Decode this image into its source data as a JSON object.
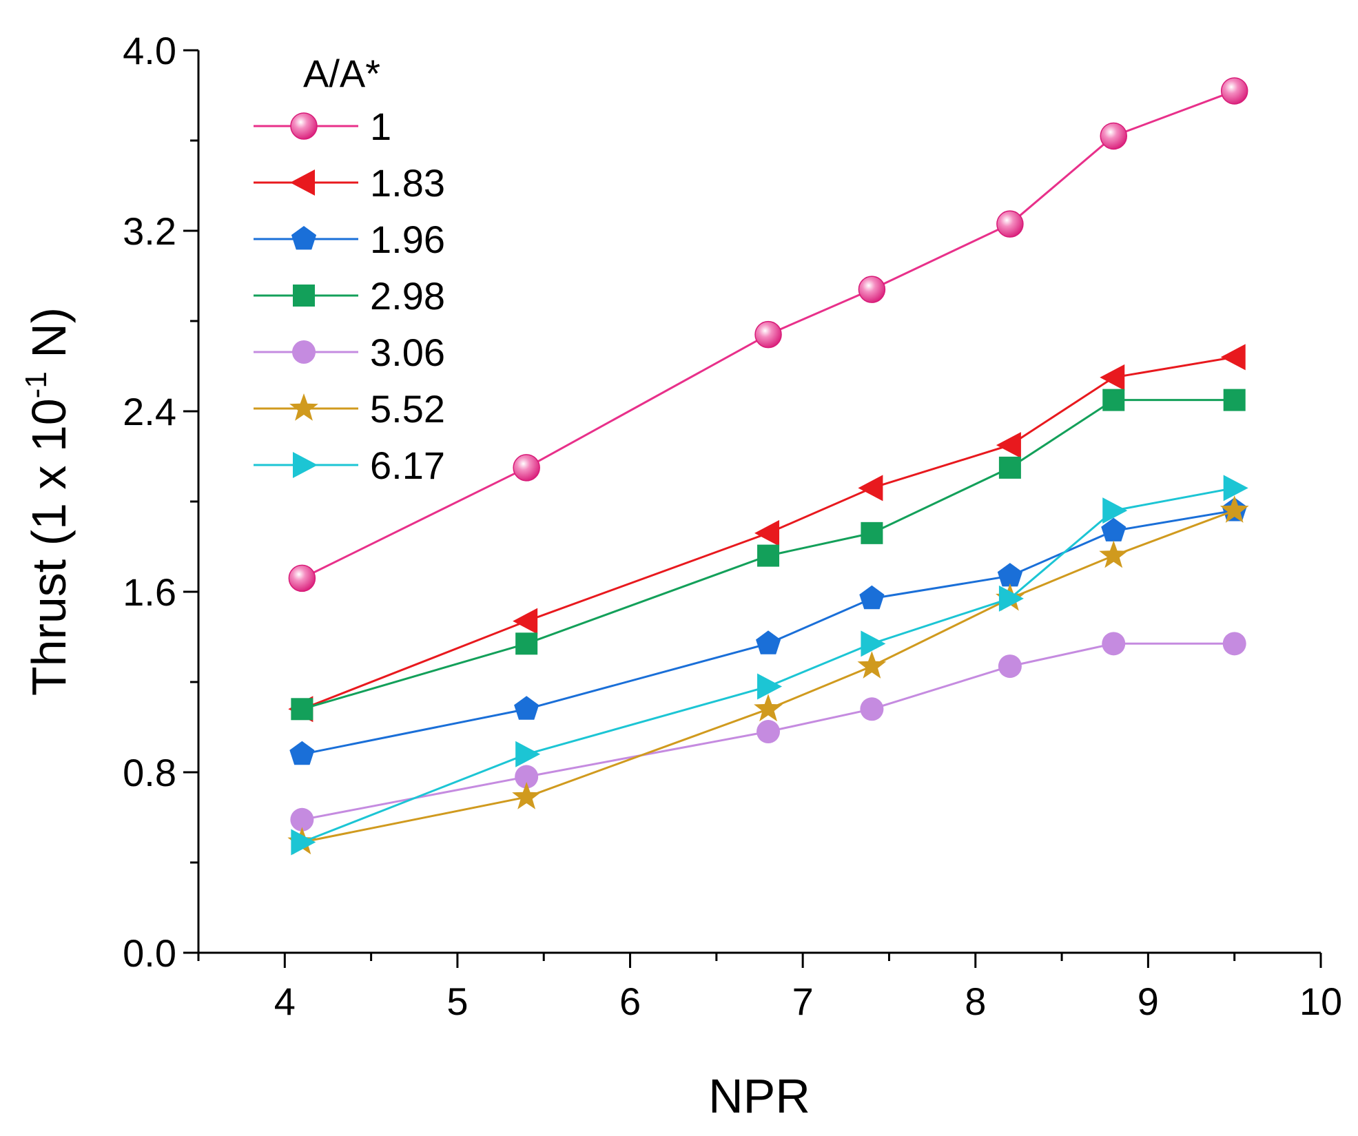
{
  "chart_data": {
    "type": "line",
    "title": "",
    "xlabel": "NPR",
    "ylabel": "Thrust (1 x 10",
    "ylabel_superscript": "-1",
    "ylabel_unit": " N)",
    "xlim": [
      3.5,
      10
    ],
    "ylim": [
      0,
      4.0
    ],
    "x_ticks": [
      "4",
      "5",
      "6",
      "7",
      "8",
      "9",
      "10"
    ],
    "y_ticks": [
      "0.0",
      "0.8",
      "1.6",
      "2.4",
      "3.2",
      "4.0"
    ],
    "legend_title": "A/A*",
    "legend_position": "top-left",
    "grid": false,
    "x": [
      4.1,
      5.4,
      6.8,
      7.4,
      8.2,
      8.8,
      9.5
    ],
    "series": [
      {
        "name": "1",
        "marker": "sphere",
        "color": "#e8308a",
        "values": [
          1.66,
          2.15,
          2.74,
          2.94,
          3.23,
          3.62,
          3.82
        ]
      },
      {
        "name": "1.83",
        "marker": "triangle-left",
        "color": "#e8191e",
        "values": [
          1.08,
          1.47,
          1.86,
          2.06,
          2.25,
          2.55,
          2.64
        ]
      },
      {
        "name": "1.96",
        "marker": "pentagon",
        "color": "#1a6fd8",
        "values": [
          0.88,
          1.08,
          1.37,
          1.57,
          1.67,
          1.87,
          1.96
        ]
      },
      {
        "name": "2.98",
        "marker": "square",
        "color": "#13a05a",
        "values": [
          1.08,
          1.37,
          1.76,
          1.86,
          2.15,
          2.45,
          2.45
        ]
      },
      {
        "name": "3.06",
        "marker": "circle",
        "color": "#c58be0",
        "values": [
          0.59,
          0.78,
          0.98,
          1.08,
          1.27,
          1.37,
          1.37
        ]
      },
      {
        "name": "5.52",
        "marker": "star",
        "color": "#d09a1e",
        "values": [
          0.49,
          0.69,
          1.08,
          1.27,
          1.57,
          1.76,
          1.96
        ]
      },
      {
        "name": "6.17",
        "marker": "triangle-right",
        "color": "#1cc5d4",
        "values": [
          0.49,
          0.88,
          1.18,
          1.37,
          1.57,
          1.96,
          2.06
        ]
      }
    ]
  }
}
